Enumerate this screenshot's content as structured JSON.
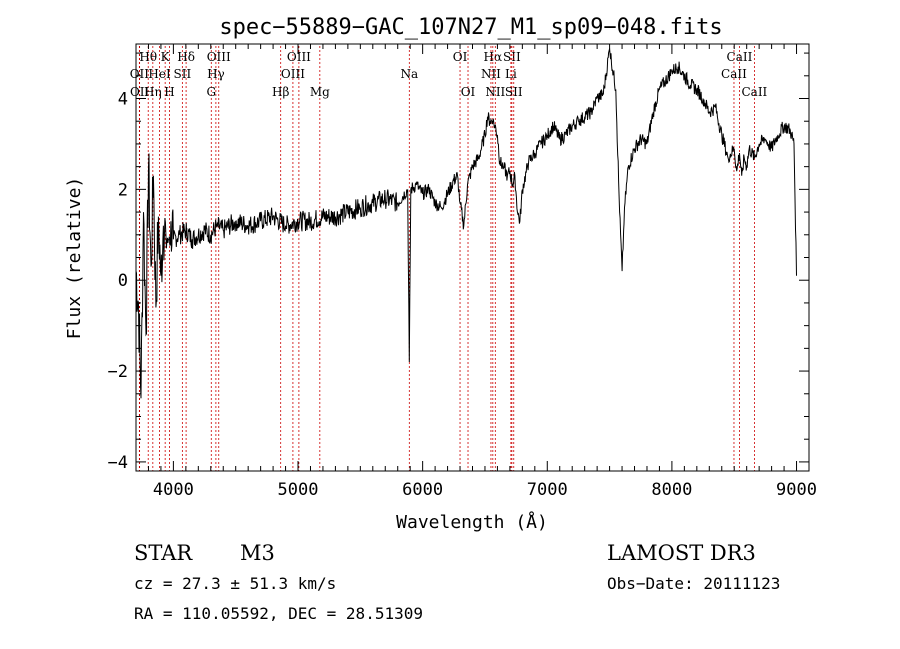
{
  "chart_data": {
    "type": "line",
    "title": "spec−55889−GAC_107N27_M1_sp09−048.fits",
    "xlabel": "Wavelength (Å)",
    "ylabel": "Flux (relative)",
    "xlim": [
      3700,
      9100
    ],
    "ylim": [
      -4.2,
      5.2
    ],
    "xticks": [
      4000,
      5000,
      6000,
      7000,
      8000,
      9000
    ],
    "xtick_labels": [
      "4000",
      "5000",
      "6000",
      "7000",
      "8000",
      "9000"
    ],
    "yticks": [
      -4,
      -2,
      0,
      2,
      4
    ],
    "ytick_labels": [
      "−4",
      "−2",
      "0",
      "2",
      "4"
    ],
    "grid": false,
    "line_color": "#000000",
    "marker_color": "#cc0000",
    "spectrum": {
      "name": "flux",
      "x": [
        3700,
        3720,
        3740,
        3760,
        3780,
        3800,
        3820,
        3840,
        3860,
        3880,
        3900,
        3920,
        3940,
        3960,
        3980,
        4000,
        4050,
        4100,
        4150,
        4200,
        4250,
        4300,
        4350,
        4400,
        4500,
        4600,
        4700,
        4800,
        4900,
        5000,
        5100,
        5200,
        5300,
        5400,
        5500,
        5600,
        5700,
        5800,
        5880,
        5893,
        5905,
        5950,
        6000,
        6050,
        6100,
        6150,
        6200,
        6250,
        6280,
        6300,
        6330,
        6360,
        6400,
        6450,
        6500,
        6520,
        6540,
        6563,
        6580,
        6600,
        6620,
        6650,
        6680,
        6700,
        6720,
        6740,
        6760,
        6780,
        6800,
        6850,
        6900,
        6950,
        7000,
        7050,
        7100,
        7150,
        7200,
        7250,
        7300,
        7350,
        7400,
        7450,
        7500,
        7550,
        7580,
        7600,
        7620,
        7650,
        7700,
        7750,
        7800,
        7850,
        7900,
        7950,
        8000,
        8050,
        8100,
        8150,
        8200,
        8250,
        8300,
        8350,
        8400,
        8450,
        8500,
        8520,
        8542,
        8560,
        8580,
        8600,
        8620,
        8640,
        8662,
        8700,
        8750,
        8800,
        8850,
        8900,
        8950,
        8980,
        9000
      ],
      "y": [
        0.2,
        -0.5,
        -2.6,
        1.5,
        -1.2,
        2.5,
        0.3,
        2.3,
        -0.6,
        1.4,
        0.1,
        1.2,
        1.0,
        0.9,
        1.3,
        0.9,
        1.0,
        1.1,
        0.9,
        1.0,
        1.1,
        1.0,
        1.2,
        1.1,
        1.3,
        1.2,
        1.3,
        1.4,
        1.2,
        1.3,
        1.3,
        1.4,
        1.4,
        1.5,
        1.6,
        1.7,
        1.8,
        1.7,
        2.0,
        -1.8,
        2.0,
        2.1,
        1.9,
        2.0,
        1.7,
        1.6,
        1.9,
        2.2,
        2.3,
        1.7,
        1.2,
        2.1,
        2.5,
        2.7,
        3.2,
        3.6,
        3.5,
        3.5,
        3.4,
        3.2,
        2.6,
        2.5,
        2.3,
        2.4,
        2.1,
        2.3,
        1.5,
        1.3,
        2.0,
        2.6,
        2.8,
        3.0,
        3.2,
        3.4,
        3.1,
        3.2,
        3.4,
        3.5,
        3.6,
        3.7,
        4.0,
        4.1,
        5.1,
        4.2,
        1.5,
        0.2,
        1.6,
        2.5,
        2.9,
        3.1,
        3.0,
        3.7,
        4.2,
        4.4,
        4.6,
        4.7,
        4.5,
        4.3,
        4.2,
        4.0,
        3.7,
        3.8,
        3.2,
        2.7,
        2.9,
        2.4,
        2.8,
        2.3,
        2.7,
        2.5,
        2.9,
        2.8,
        2.7,
        3.0,
        3.1,
        2.9,
        3.2,
        3.4,
        3.3,
        3.0,
        0.1
      ]
    },
    "line_markers": [
      {
        "label": "Hθ",
        "x": 3798,
        "row": 1
      },
      {
        "label": "OII",
        "x": 3727,
        "row": 2
      },
      {
        "label": "OII",
        "x": 3729,
        "row": 3
      },
      {
        "label": "Hη",
        "x": 3835,
        "row": 3
      },
      {
        "label": "HeI",
        "x": 3889,
        "row": 2
      },
      {
        "label": "K",
        "x": 3934,
        "row": 1
      },
      {
        "label": "H",
        "x": 3969,
        "row": 3
      },
      {
        "label": "SII",
        "x": 4072,
        "row": 2
      },
      {
        "label": "Hδ",
        "x": 4102,
        "row": 1
      },
      {
        "label": "OIII",
        "x": 4364,
        "row": 1
      },
      {
        "label": "Hγ",
        "x": 4341,
        "row": 2
      },
      {
        "label": "G",
        "x": 4304,
        "row": 3
      },
      {
        "label": "Hβ",
        "x": 4861,
        "row": 3
      },
      {
        "label": "OIII",
        "x": 5007,
        "row": 1
      },
      {
        "label": "OIII",
        "x": 4959,
        "row": 2
      },
      {
        "label": "Mg",
        "x": 5175,
        "row": 3
      },
      {
        "label": "Na",
        "x": 5893,
        "row": 2
      },
      {
        "label": "OI",
        "x": 6300,
        "row": 1
      },
      {
        "label": "OI",
        "x": 6364,
        "row": 3
      },
      {
        "label": "Hα",
        "x": 6563,
        "row": 1
      },
      {
        "label": "NII",
        "x": 6548,
        "row": 2
      },
      {
        "label": "NII",
        "x": 6583,
        "row": 3
      },
      {
        "label": "SII",
        "x": 6716,
        "row": 1
      },
      {
        "label": "Li",
        "x": 6708,
        "row": 2
      },
      {
        "label": "SII",
        "x": 6731,
        "row": 3
      },
      {
        "label": "CaII",
        "x": 8542,
        "row": 1
      },
      {
        "label": "CaII",
        "x": 8498,
        "row": 2
      },
      {
        "label": "CaII",
        "x": 8662,
        "row": 3
      }
    ]
  },
  "info": {
    "object_class": "STAR",
    "subclass": "M3",
    "survey": "LAMOST DR3",
    "cz": "cz = 27.3 ± 51.3 km/s",
    "obs_date": "Obs−Date: 20111123",
    "coords": "RA = 110.05592, DEC =  28.51309"
  }
}
